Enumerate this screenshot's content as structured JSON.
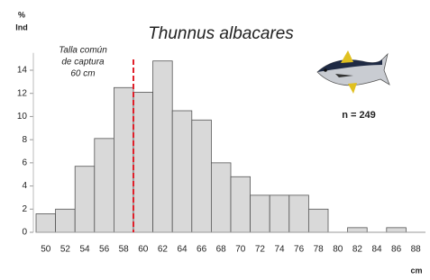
{
  "chart_data": {
    "type": "bar",
    "title": "Thunnus albacares",
    "y_label_top": "%",
    "y_label": "Ind",
    "x_label": "cm",
    "annotation": [
      "Talla común",
      "de captura",
      "60 cm"
    ],
    "sample_size": "n = 249",
    "categories": [
      "50",
      "52",
      "54",
      "56",
      "58",
      "60",
      "62",
      "64",
      "66",
      "68",
      "70",
      "72",
      "74",
      "76",
      "78",
      "80",
      "82",
      "84",
      "86",
      "88"
    ],
    "values": [
      1.6,
      2,
      5.7,
      8.1,
      12.5,
      12.1,
      14.8,
      10.5,
      9.7,
      6,
      4.8,
      3.2,
      3.2,
      3.2,
      2,
      0,
      0.4,
      0,
      0.4,
      0
    ],
    "color": "#d9d9d9",
    "ylim": [
      0,
      15.5
    ],
    "yticks": [
      0,
      2,
      4,
      6,
      8,
      10,
      12,
      14
    ]
  }
}
